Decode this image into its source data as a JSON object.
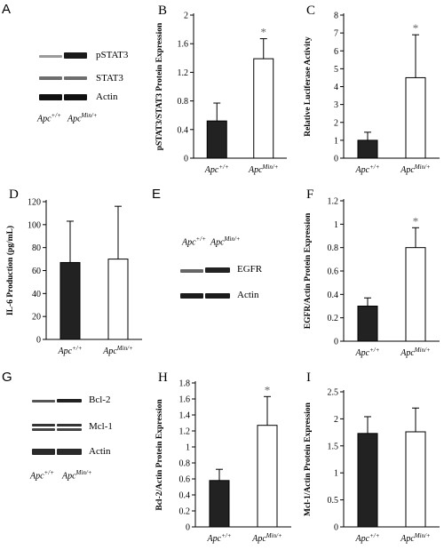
{
  "labels": {
    "apc_wt_base": "Apc",
    "apc_wt_sup": "+/+",
    "apc_min_base": "Apc",
    "apc_min_sup": "Min/+"
  },
  "blots": {
    "A": {
      "letter": "A",
      "rows": [
        "pSTAT3",
        "STAT3",
        "Actin"
      ]
    },
    "E": {
      "letter": "E",
      "rows": [
        "EGFR",
        "Actin"
      ]
    },
    "G": {
      "letter": "G",
      "rows": [
        "Bcl-2",
        "Mcl-1",
        "Actin"
      ]
    }
  },
  "chart_data": [
    {
      "panel": "B",
      "letter": "B",
      "type": "bar",
      "categories": [
        "Apc+/+",
        "ApcMin/+"
      ],
      "values": [
        0.52,
        1.39
      ],
      "errors": [
        0.25,
        0.28
      ],
      "significance": [
        "",
        "*"
      ],
      "ylabel": "pSTAT3/STAT3 Protein Expression",
      "ylim": [
        0,
        2
      ],
      "yticks": [
        "0",
        "0.4",
        "0.8",
        "1.2",
        "1.6",
        "2"
      ],
      "bar_colors": [
        "#222222",
        "#ffffff"
      ]
    },
    {
      "panel": "C",
      "letter": "C",
      "type": "bar",
      "categories": [
        "Apc+/+",
        "ApcMin/+"
      ],
      "values": [
        1.0,
        4.5
      ],
      "errors": [
        0.45,
        2.4
      ],
      "significance": [
        "",
        "*"
      ],
      "ylabel": "Relative Luciferase Activity",
      "ylim": [
        0,
        8
      ],
      "yticks": [
        "0",
        "1",
        "2",
        "3",
        "4",
        "5",
        "6",
        "7",
        "8"
      ],
      "bar_colors": [
        "#222222",
        "#ffffff"
      ]
    },
    {
      "panel": "D",
      "letter": "D",
      "type": "bar",
      "categories": [
        "Apc+/+",
        "ApcMin/+"
      ],
      "values": [
        67,
        70
      ],
      "errors": [
        36,
        46
      ],
      "significance": [
        "",
        ""
      ],
      "ylabel": "IL-6 Production (pg/mL)",
      "ylim": [
        0,
        120
      ],
      "yticks": [
        "0",
        "20",
        "40",
        "60",
        "80",
        "100",
        "120"
      ],
      "bar_colors": [
        "#222222",
        "#ffffff"
      ]
    },
    {
      "panel": "F",
      "letter": "F",
      "type": "bar",
      "categories": [
        "Apc+/+",
        "ApcMin/+"
      ],
      "values": [
        0.3,
        0.8
      ],
      "errors": [
        0.07,
        0.17
      ],
      "significance": [
        "",
        "*"
      ],
      "ylabel": "EGFR/Actin Protein Expression",
      "ylim": [
        0,
        1.2
      ],
      "yticks": [
        "0",
        "0.2",
        "0.4",
        "0.6",
        "0.8",
        "1",
        "1.2"
      ],
      "bar_colors": [
        "#222222",
        "#ffffff"
      ]
    },
    {
      "panel": "H",
      "letter": "H",
      "type": "bar",
      "categories": [
        "Apc+/+",
        "ApcMin/+"
      ],
      "values": [
        0.58,
        1.27
      ],
      "errors": [
        0.14,
        0.36
      ],
      "significance": [
        "",
        "*"
      ],
      "ylabel": "Bcl-2/Actin Protein Expression",
      "ylim": [
        0,
        1.8
      ],
      "yticks": [
        "0",
        "0.2",
        "0.4",
        "0.6",
        "0.8",
        "1",
        "1.2",
        "1.4",
        "1.6",
        "1.8"
      ],
      "bar_colors": [
        "#222222",
        "#ffffff"
      ]
    },
    {
      "panel": "I",
      "letter": "I",
      "type": "bar",
      "categories": [
        "Apc+/+",
        "ApcMin/+"
      ],
      "values": [
        1.73,
        1.76
      ],
      "errors": [
        0.31,
        0.44
      ],
      "significance": [
        "",
        ""
      ],
      "ylabel": "Mcl-1/Actin Protein Expression",
      "ylim": [
        0,
        2.5
      ],
      "yticks": [
        "0",
        "0.5",
        "1",
        "1.5",
        "2",
        "2.5"
      ],
      "bar_colors": [
        "#222222",
        "#ffffff"
      ]
    }
  ]
}
